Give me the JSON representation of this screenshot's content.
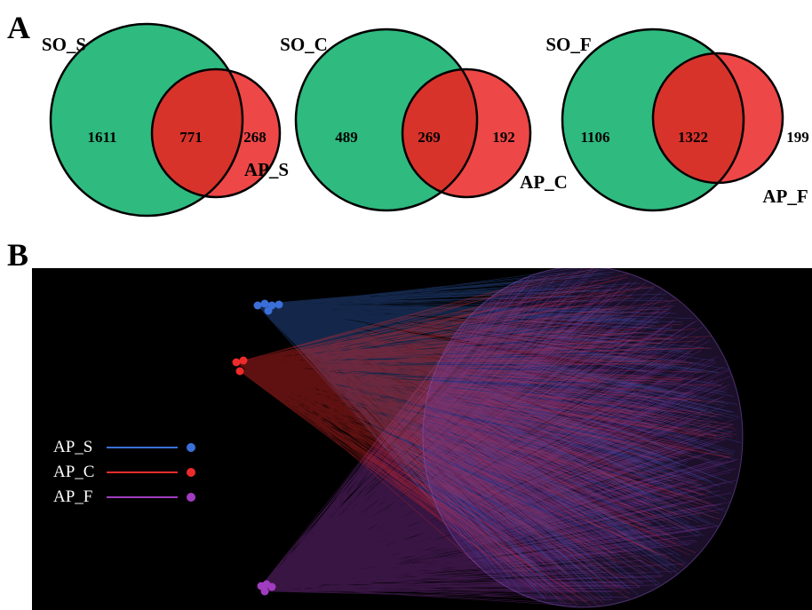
{
  "panel_a": {
    "letter": "A",
    "venns": [
      {
        "so_label": "SO_S",
        "ap_label": "AP_S",
        "so_only": "1611",
        "overlap": "771",
        "ap_only": "268"
      },
      {
        "so_label": "SO_C",
        "ap_label": "AP_C",
        "so_only": "489",
        "overlap": "269",
        "ap_only": "192"
      },
      {
        "so_label": "SO_F",
        "ap_label": "AP_F",
        "so_only": "1106",
        "overlap": "1322",
        "ap_only": "199"
      }
    ]
  },
  "panel_b": {
    "letter": "B",
    "legend": [
      {
        "label": "AP_S",
        "color": "#3a6fd8"
      },
      {
        "label": "AP_C",
        "color": "#ee2b2b"
      },
      {
        "label": "AP_F",
        "color": "#a03cc0"
      }
    ]
  },
  "colors": {
    "so_fill": "#2fba7f",
    "ap_fill": "#ee4747",
    "overlap_fill": "#d8332b",
    "panel_bg": "#000000"
  }
}
